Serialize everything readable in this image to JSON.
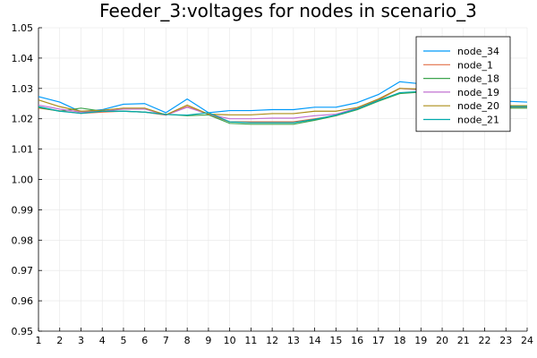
{
  "chart_data": {
    "type": "line",
    "title": "Feeder_3:voltages for nodes in scenario_3",
    "xlabel": "",
    "ylabel": "",
    "x": [
      1,
      2,
      3,
      4,
      5,
      6,
      7,
      8,
      9,
      10,
      11,
      12,
      13,
      14,
      15,
      16,
      17,
      18,
      19,
      20,
      21,
      22,
      23,
      24
    ],
    "x_ticks": [
      "1",
      "2",
      "3",
      "4",
      "5",
      "6",
      "7",
      "8",
      "9",
      "10",
      "11",
      "12",
      "13",
      "14",
      "15",
      "16",
      "17",
      "18",
      "19",
      "20",
      "21",
      "22",
      "23",
      "24"
    ],
    "y_ticks": [
      "0.95",
      "0.96",
      "0.97",
      "0.98",
      "0.99",
      "1.00",
      "1.01",
      "1.02",
      "1.03",
      "1.04",
      "1.05"
    ],
    "xlim": [
      1,
      24
    ],
    "ylim": [
      0.95,
      1.05
    ],
    "grid": true,
    "legend_position": "top-right",
    "series": [
      {
        "name": "node_34",
        "color": "#009AFA",
        "values": [
          1.0273,
          1.0255,
          1.0223,
          1.023,
          1.0248,
          1.025,
          1.022,
          1.0265,
          1.022,
          1.0227,
          1.0227,
          1.023,
          1.023,
          1.0238,
          1.0238,
          1.0253,
          1.028,
          1.0322,
          1.0315,
          1.031,
          1.03,
          1.0285,
          1.0258,
          1.0255
        ]
      },
      {
        "name": "node_1",
        "color": "#E36F47",
        "values": [
          1.0235,
          1.0226,
          1.0218,
          1.0222,
          1.0225,
          1.0222,
          1.0212,
          1.024,
          1.0215,
          1.019,
          1.019,
          1.019,
          1.019,
          1.02,
          1.021,
          1.0235,
          1.0262,
          1.03,
          1.0296,
          1.0292,
          1.0282,
          1.026,
          1.0238,
          1.0238
        ]
      },
      {
        "name": "node_18",
        "color": "#3EA44E",
        "values": [
          1.0237,
          1.0225,
          1.0235,
          1.0225,
          1.0225,
          1.0222,
          1.0215,
          1.021,
          1.0213,
          1.0185,
          1.0182,
          1.0182,
          1.0182,
          1.0195,
          1.021,
          1.023,
          1.0258,
          1.0283,
          1.0288,
          1.0288,
          1.0278,
          1.0258,
          1.0235,
          1.0235
        ]
      },
      {
        "name": "node_19",
        "color": "#C271D2",
        "values": [
          1.0245,
          1.0232,
          1.0222,
          1.0225,
          1.0232,
          1.0232,
          1.0212,
          1.0238,
          1.0215,
          1.02,
          1.02,
          1.0202,
          1.0202,
          1.021,
          1.0215,
          1.0235,
          1.0265,
          1.03,
          1.0295,
          1.029,
          1.0282,
          1.0262,
          1.024,
          1.024
        ]
      },
      {
        "name": "node_20",
        "color": "#AC8D18",
        "values": [
          1.0262,
          1.024,
          1.0225,
          1.0228,
          1.0235,
          1.0235,
          1.0213,
          1.0245,
          1.0215,
          1.0213,
          1.0213,
          1.0217,
          1.0217,
          1.0225,
          1.0225,
          1.0237,
          1.0265,
          1.03,
          1.0298,
          1.0292,
          1.0283,
          1.0263,
          1.0243,
          1.0243
        ]
      },
      {
        "name": "node_21",
        "color": "#00A9AD",
        "values": [
          1.024,
          1.0225,
          1.0218,
          1.0225,
          1.0225,
          1.0222,
          1.0214,
          1.0212,
          1.022,
          1.019,
          1.0187,
          1.0187,
          1.0187,
          1.0198,
          1.0212,
          1.0232,
          1.026,
          1.0286,
          1.029,
          1.0288,
          1.0278,
          1.0258,
          1.024,
          1.024
        ]
      }
    ]
  }
}
